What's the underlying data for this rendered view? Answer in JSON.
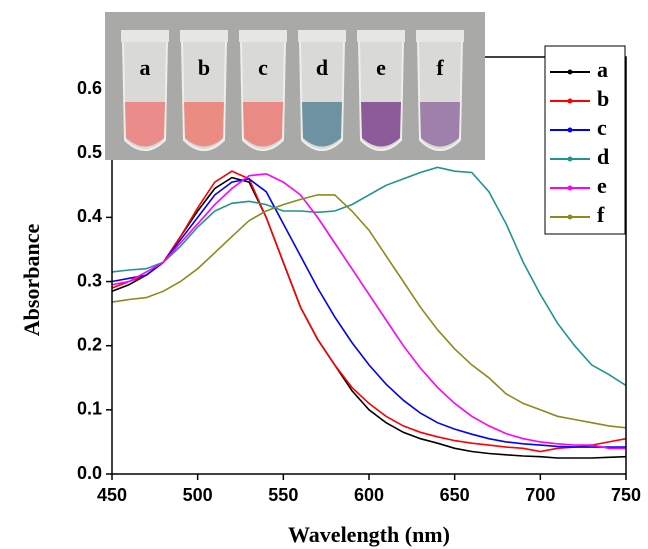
{
  "chart_data": {
    "type": "line",
    "xlabel": "Wavelength (nm)",
    "ylabel": "Absorbance",
    "x": [
      450,
      460,
      470,
      480,
      490,
      500,
      510,
      520,
      530,
      540,
      550,
      560,
      570,
      580,
      590,
      600,
      610,
      620,
      630,
      640,
      650,
      660,
      670,
      680,
      690,
      700,
      710,
      720,
      730,
      740,
      750
    ],
    "series": [
      {
        "name": "a",
        "color": "#000000",
        "values": [
          0.285,
          0.295,
          0.31,
          0.33,
          0.37,
          0.41,
          0.445,
          0.462,
          0.455,
          0.4,
          0.33,
          0.26,
          0.21,
          0.17,
          0.13,
          0.1,
          0.08,
          0.065,
          0.055,
          0.048,
          0.04,
          0.035,
          0.032,
          0.03,
          0.028,
          0.027,
          0.025,
          0.025,
          0.025,
          0.026,
          0.027
        ]
      },
      {
        "name": "b",
        "color": "#ff0000",
        "values": [
          0.29,
          0.3,
          0.31,
          0.33,
          0.37,
          0.415,
          0.455,
          0.472,
          0.46,
          0.4,
          0.33,
          0.26,
          0.21,
          0.17,
          0.135,
          0.11,
          0.09,
          0.075,
          0.065,
          0.058,
          0.052,
          0.048,
          0.045,
          0.042,
          0.04,
          0.035,
          0.04,
          0.042,
          0.045,
          0.05,
          0.055
        ]
      },
      {
        "name": "c",
        "color": "#0000ff",
        "values": [
          0.3,
          0.305,
          0.31,
          0.33,
          0.365,
          0.4,
          0.435,
          0.455,
          0.46,
          0.44,
          0.39,
          0.34,
          0.29,
          0.245,
          0.205,
          0.17,
          0.14,
          0.115,
          0.095,
          0.08,
          0.07,
          0.062,
          0.055,
          0.05,
          0.047,
          0.045,
          0.043,
          0.042,
          0.042,
          0.042,
          0.042
        ]
      },
      {
        "name": "d",
        "color": "#1f9490",
        "values": [
          0.315,
          0.318,
          0.32,
          0.33,
          0.355,
          0.385,
          0.41,
          0.422,
          0.425,
          0.42,
          0.41,
          0.41,
          0.408,
          0.41,
          0.42,
          0.435,
          0.45,
          0.46,
          0.47,
          0.478,
          0.472,
          0.47,
          0.44,
          0.39,
          0.33,
          0.28,
          0.235,
          0.2,
          0.17,
          0.155,
          0.138
        ]
      },
      {
        "name": "e",
        "color": "#ff00ff",
        "values": [
          0.295,
          0.3,
          0.315,
          0.33,
          0.36,
          0.39,
          0.42,
          0.445,
          0.465,
          0.468,
          0.455,
          0.435,
          0.4,
          0.36,
          0.32,
          0.28,
          0.24,
          0.2,
          0.165,
          0.135,
          0.11,
          0.09,
          0.075,
          0.063,
          0.055,
          0.05,
          0.047,
          0.045,
          0.045,
          0.04,
          0.04
        ]
      },
      {
        "name": "f",
        "color": "#8c8a1c",
        "values": [
          0.268,
          0.272,
          0.275,
          0.285,
          0.3,
          0.32,
          0.345,
          0.37,
          0.395,
          0.41,
          0.42,
          0.428,
          0.435,
          0.435,
          0.41,
          0.38,
          0.34,
          0.3,
          0.26,
          0.225,
          0.195,
          0.17,
          0.15,
          0.125,
          0.11,
          0.1,
          0.09,
          0.085,
          0.08,
          0.075,
          0.072
        ]
      }
    ],
    "xlim": [
      450,
      750
    ],
    "xticks": [
      450,
      500,
      550,
      600,
      650,
      700,
      750
    ],
    "ylim": [
      0,
      0.65
    ],
    "yticks": [
      {
        "value": 0,
        "label": "0.0"
      },
      0.1,
      0.2,
      0.3,
      0.4,
      0.5,
      0.6
    ],
    "legend_loc": "upper right",
    "inset_labels": [
      "a",
      "b",
      "c",
      "d",
      "e",
      "f"
    ]
  }
}
